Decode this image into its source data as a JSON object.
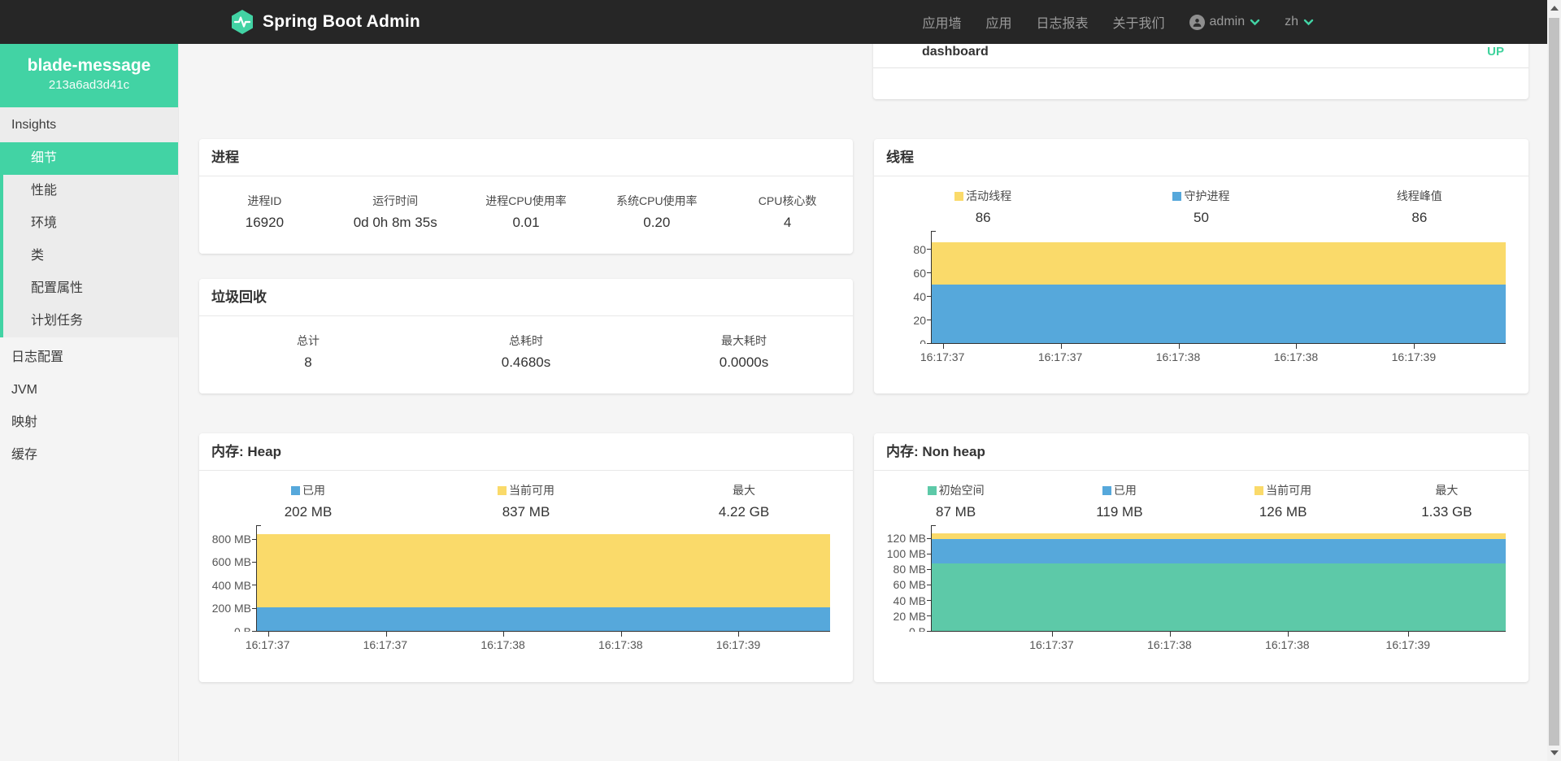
{
  "navbar": {
    "brand": "Spring Boot Admin",
    "items": [
      "应用墙",
      "应用",
      "日志报表",
      "关于我们"
    ],
    "user_label": "admin",
    "lang_label": "zh"
  },
  "sidebar": {
    "app_name": "blade-message",
    "instance_id": "213a6ad3d41c",
    "group_label": "Insights",
    "submenu": [
      "细节",
      "性能",
      "环境",
      "类",
      "配置属性",
      "计划任务"
    ],
    "selected_submenu": "细节",
    "items": [
      "日志配置",
      "JVM",
      "映射",
      "缓存"
    ]
  },
  "status_card": {
    "app": "dashboard",
    "status": "UP"
  },
  "cards": {
    "process": {
      "title": "进程",
      "stats": [
        {
          "label": "进程ID",
          "value": "16920"
        },
        {
          "label": "运行时间",
          "value": "0d 0h 8m 35s"
        },
        {
          "label": "进程CPU使用率",
          "value": "0.01"
        },
        {
          "label": "系统CPU使用率",
          "value": "0.20"
        },
        {
          "label": "CPU核心数",
          "value": "4"
        }
      ]
    },
    "gc": {
      "title": "垃圾回收",
      "stats": [
        {
          "label": "总计",
          "value": "8"
        },
        {
          "label": "总耗时",
          "value": "0.4680s"
        },
        {
          "label": "最大耗时",
          "value": "0.0000s"
        }
      ]
    },
    "threads": {
      "title": "线程",
      "stats": [
        {
          "swatch": "#fada6a",
          "label": "活动线程",
          "value": "86"
        },
        {
          "swatch": "#56a8db",
          "label": "守护进程",
          "value": "50"
        },
        {
          "label": "线程峰值",
          "value": "86"
        }
      ]
    },
    "heap": {
      "title": "内存: Heap",
      "stats": [
        {
          "swatch": "#56a8db",
          "label": "已用",
          "value": "202 MB"
        },
        {
          "swatch": "#fada6a",
          "label": "当前可用",
          "value": "837 MB"
        },
        {
          "label": "最大",
          "value": "4.22 GB"
        }
      ]
    },
    "nonheap": {
      "title": "内存: Non heap",
      "stats": [
        {
          "swatch": "#5dc9a8",
          "label": "初始空间",
          "value": "87 MB"
        },
        {
          "swatch": "#56a8db",
          "label": "已用",
          "value": "119 MB"
        },
        {
          "swatch": "#fada6a",
          "label": "当前可用",
          "value": "126 MB"
        },
        {
          "label": "最大",
          "value": "1.33 GB"
        }
      ]
    }
  },
  "colors": {
    "accent": "#42d3a4",
    "status_up": "#3ed29c",
    "chart_yellow": "#fada6a",
    "chart_blue": "#56a8db",
    "chart_green": "#5dc9a8"
  },
  "chart_data": [
    {
      "id": "threads",
      "type": "area",
      "title": "线程",
      "x_labels": [
        "16:17:37",
        "16:17:37",
        "16:17:38",
        "16:17:38",
        "16:17:39"
      ],
      "x_label_pos_pct": [
        2,
        22.5,
        43,
        63.5,
        84
      ],
      "ymax": 90,
      "y_ticks": [
        {
          "v": 0,
          "label": "0"
        },
        {
          "v": 20,
          "label": "20"
        },
        {
          "v": 40,
          "label": "40"
        },
        {
          "v": 60,
          "label": "60"
        },
        {
          "v": 80,
          "label": "80"
        }
      ],
      "bands": [
        {
          "name": "守护进程",
          "color": "#56a8db",
          "from": 0,
          "to": 50
        },
        {
          "name": "活动线程",
          "color": "#fada6a",
          "from": 50,
          "to": 86
        }
      ],
      "series": [
        {
          "name": "活动线程",
          "values": [
            86,
            86,
            86,
            86,
            86
          ]
        },
        {
          "name": "守护进程",
          "values": [
            50,
            50,
            50,
            50,
            50
          ]
        }
      ]
    },
    {
      "id": "heap",
      "type": "area",
      "title": "内存: Heap",
      "x_labels": [
        "16:17:37",
        "16:17:37",
        "16:17:38",
        "16:17:38",
        "16:17:39"
      ],
      "x_label_pos_pct": [
        2,
        22.5,
        43,
        63.5,
        84
      ],
      "ymax": 860,
      "y_ticks": [
        {
          "v": 0,
          "label": "0 B"
        },
        {
          "v": 200,
          "label": "200 MB"
        },
        {
          "v": 400,
          "label": "400 MB"
        },
        {
          "v": 600,
          "label": "600 MB"
        },
        {
          "v": 800,
          "label": "800 MB"
        }
      ],
      "bands": [
        {
          "name": "已用",
          "color": "#56a8db",
          "from": 0,
          "to": 202
        },
        {
          "name": "当前可用",
          "color": "#fada6a",
          "from": 202,
          "to": 837
        }
      ],
      "series": [
        {
          "name": "已用(MB)",
          "values": [
            202,
            202,
            202,
            202,
            202
          ]
        },
        {
          "name": "当前可用(MB)",
          "values": [
            837,
            837,
            837,
            837,
            837
          ]
        }
      ]
    },
    {
      "id": "nonheap",
      "type": "area",
      "title": "内存: Non heap",
      "x_labels": [
        "16:17:37",
        "16:17:38",
        "16:17:38",
        "16:17:39"
      ],
      "x_label_pos_pct": [
        21,
        41.5,
        62,
        83
      ],
      "ymax": 128,
      "y_ticks": [
        {
          "v": 0,
          "label": "0 B"
        },
        {
          "v": 20,
          "label": "20 MB"
        },
        {
          "v": 40,
          "label": "40 MB"
        },
        {
          "v": 60,
          "label": "60 MB"
        },
        {
          "v": 80,
          "label": "80 MB"
        },
        {
          "v": 100,
          "label": "100 MB"
        },
        {
          "v": 120,
          "label": "120 MB"
        }
      ],
      "bands": [
        {
          "name": "初始空间",
          "color": "#5dc9a8",
          "from": 0,
          "to": 87
        },
        {
          "name": "已用",
          "color": "#56a8db",
          "from": 87,
          "to": 119
        },
        {
          "name": "当前可用",
          "color": "#fada6a",
          "from": 119,
          "to": 126
        }
      ],
      "series": [
        {
          "name": "初始空间(MB)",
          "values": [
            87,
            87,
            87,
            87
          ]
        },
        {
          "name": "已用(MB)",
          "values": [
            119,
            119,
            119,
            119
          ]
        },
        {
          "name": "当前可用(MB)",
          "values": [
            126,
            126,
            126,
            126
          ]
        }
      ]
    }
  ]
}
